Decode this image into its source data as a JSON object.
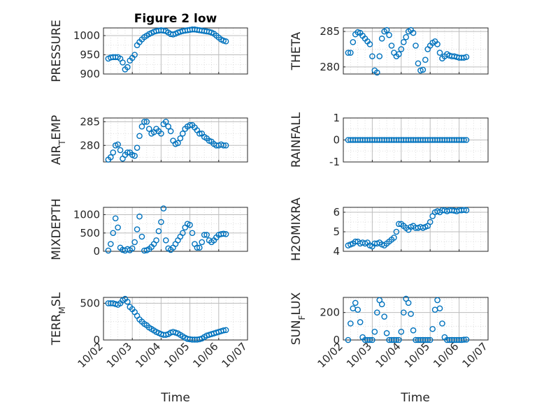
{
  "figure": {
    "title": "Figure 2 low",
    "xlabel": "Time"
  },
  "colors": {
    "marker": "#0072BD",
    "axis": "#262626",
    "grid": "#bdbdbd"
  },
  "chart_data": [
    {
      "type": "scatter",
      "title": "Figure 2 low",
      "ylabel": "PRESSURE",
      "ylabel_sub": "",
      "ylim": [
        900,
        1020
      ],
      "yticks": [
        900,
        950,
        1000
      ],
      "xticks_visible": false,
      "x": [
        "10/02 04:00",
        "10/02 06:00",
        "10/02 08:00",
        "10/02 10:00",
        "10/02 12:00",
        "10/02 14:00",
        "10/02 16:00",
        "10/02 18:00",
        "10/02 20:00",
        "10/02 22:00",
        "10/03 00:00",
        "10/03 02:00",
        "10/03 04:00",
        "10/03 06:00",
        "10/03 08:00",
        "10/03 10:00",
        "10/03 12:00",
        "10/03 14:00",
        "10/03 16:00",
        "10/03 18:00",
        "10/03 20:00",
        "10/03 22:00",
        "10/04 00:00",
        "10/04 02:00",
        "10/04 04:00",
        "10/04 06:00",
        "10/04 08:00",
        "10/04 10:00",
        "10/04 12:00",
        "10/04 14:00",
        "10/04 16:00",
        "10/04 18:00",
        "10/04 20:00",
        "10/04 22:00",
        "10/05 00:00",
        "10/05 02:00",
        "10/05 04:00",
        "10/05 06:00",
        "10/05 08:00",
        "10/05 10:00",
        "10/05 12:00",
        "10/05 14:00",
        "10/05 16:00",
        "10/05 18:00",
        "10/05 20:00",
        "10/05 22:00",
        "10/06 00:00",
        "10/06 02:00",
        "10/06 04:00",
        "10/06 06:00"
      ],
      "y": [
        940,
        943,
        944,
        944,
        944,
        940,
        930,
        912,
        918,
        935,
        942,
        950,
        975,
        983,
        990,
        996,
        1000,
        1004,
        1007,
        1010,
        1012,
        1013,
        1014,
        1013,
        1012,
        1008,
        1004,
        1003,
        1005,
        1008,
        1010,
        1012,
        1013,
        1014,
        1015,
        1016,
        1016,
        1015,
        1014,
        1013,
        1012,
        1011,
        1010,
        1008,
        1005,
        1000,
        995,
        990,
        987,
        985
      ]
    },
    {
      "type": "scatter",
      "title": "",
      "ylabel": "THETA",
      "ylabel_sub": "",
      "ylim": [
        279,
        285.5
      ],
      "yticks": [
        280,
        285
      ],
      "xticks_visible": false,
      "x": [
        "10/02 04:00",
        "10/02 06:00",
        "10/02 08:00",
        "10/02 10:00",
        "10/02 12:00",
        "10/02 14:00",
        "10/02 16:00",
        "10/02 18:00",
        "10/02 20:00",
        "10/02 22:00",
        "10/03 00:00",
        "10/03 02:00",
        "10/03 04:00",
        "10/03 06:00",
        "10/03 08:00",
        "10/03 10:00",
        "10/03 12:00",
        "10/03 14:00",
        "10/03 16:00",
        "10/03 18:00",
        "10/03 20:00",
        "10/03 22:00",
        "10/04 00:00",
        "10/04 02:00",
        "10/04 04:00",
        "10/04 06:00",
        "10/04 08:00",
        "10/04 10:00",
        "10/04 12:00",
        "10/04 14:00",
        "10/04 16:00",
        "10/04 18:00",
        "10/04 20:00",
        "10/04 22:00",
        "10/05 00:00",
        "10/05 02:00",
        "10/05 04:00",
        "10/05 06:00",
        "10/05 08:00",
        "10/05 10:00",
        "10/05 12:00",
        "10/05 14:00",
        "10/05 16:00",
        "10/05 18:00",
        "10/05 20:00",
        "10/05 22:00",
        "10/06 00:00",
        "10/06 02:00",
        "10/06 04:00",
        "10/06 06:00"
      ],
      "y": [
        282,
        282,
        283.5,
        284.6,
        284.9,
        284.8,
        284.4,
        284,
        283.6,
        283.2,
        281.5,
        279.5,
        279.2,
        281.5,
        284,
        285,
        285.2,
        284.5,
        283,
        282,
        281.5,
        281.8,
        282.5,
        283.5,
        284.2,
        285,
        285.2,
        284.8,
        283,
        280.5,
        279.5,
        279.6,
        281,
        282.5,
        283,
        283.4,
        283.6,
        283.2,
        282,
        281.2,
        281.5,
        281.8,
        281.6,
        281.5,
        281.5,
        281.4,
        281.3,
        281.3,
        281.3,
        281.4
      ]
    },
    {
      "type": "scatter",
      "title": "",
      "ylabel": "AIR",
      "ylabel_sub": "T",
      "ylabel_tail": "EMP",
      "ylim": [
        276.5,
        285.8
      ],
      "yticks": [
        280,
        285
      ],
      "xticks_visible": false,
      "x": [
        "10/02 04:00",
        "10/02 06:00",
        "10/02 08:00",
        "10/02 10:00",
        "10/02 12:00",
        "10/02 14:00",
        "10/02 16:00",
        "10/02 18:00",
        "10/02 20:00",
        "10/02 22:00",
        "10/03 00:00",
        "10/03 02:00",
        "10/03 04:00",
        "10/03 06:00",
        "10/03 08:00",
        "10/03 10:00",
        "10/03 12:00",
        "10/03 14:00",
        "10/03 16:00",
        "10/03 18:00",
        "10/03 20:00",
        "10/03 22:00",
        "10/04 00:00",
        "10/04 02:00",
        "10/04 04:00",
        "10/04 06:00",
        "10/04 08:00",
        "10/04 10:00",
        "10/04 12:00",
        "10/04 14:00",
        "10/04 16:00",
        "10/04 18:00",
        "10/04 20:00",
        "10/04 22:00",
        "10/05 00:00",
        "10/05 02:00",
        "10/05 04:00",
        "10/05 06:00",
        "10/05 08:00",
        "10/05 10:00",
        "10/05 12:00",
        "10/05 14:00",
        "10/05 16:00",
        "10/05 18:00",
        "10/05 20:00",
        "10/05 22:00",
        "10/06 00:00",
        "10/06 02:00",
        "10/06 04:00",
        "10/06 06:00"
      ],
      "y": [
        277,
        277.5,
        278.5,
        280,
        280.2,
        279,
        277.2,
        278,
        278.5,
        278.5,
        278,
        277.8,
        279.5,
        282,
        284,
        285,
        285,
        283.5,
        282.5,
        282.8,
        283.5,
        283,
        282.5,
        284.5,
        285,
        284,
        283,
        281,
        280.3,
        280.5,
        281.5,
        282.5,
        283.5,
        284,
        284.3,
        284.3,
        283.8,
        283.2,
        282.5,
        282.5,
        281.8,
        281.5,
        281,
        280.8,
        280.3,
        280,
        280,
        280.2,
        280,
        280
      ]
    },
    {
      "type": "scatter",
      "title": "",
      "ylabel": "RAINFALL",
      "ylabel_sub": "",
      "ylim": [
        -1,
        1
      ],
      "yticks": [
        -1,
        0,
        1
      ],
      "xticks_visible": false,
      "x": [
        "10/02 04:00",
        "10/02 06:00",
        "10/02 08:00",
        "10/02 10:00",
        "10/02 12:00",
        "10/02 14:00",
        "10/02 16:00",
        "10/02 18:00",
        "10/02 20:00",
        "10/02 22:00",
        "10/03 00:00",
        "10/03 02:00",
        "10/03 04:00",
        "10/03 06:00",
        "10/03 08:00",
        "10/03 10:00",
        "10/03 12:00",
        "10/03 14:00",
        "10/03 16:00",
        "10/03 18:00",
        "10/03 20:00",
        "10/03 22:00",
        "10/04 00:00",
        "10/04 02:00",
        "10/04 04:00",
        "10/04 06:00",
        "10/04 08:00",
        "10/04 10:00",
        "10/04 12:00",
        "10/04 14:00",
        "10/04 16:00",
        "10/04 18:00",
        "10/04 20:00",
        "10/04 22:00",
        "10/05 00:00",
        "10/05 02:00",
        "10/05 04:00",
        "10/05 06:00",
        "10/05 08:00",
        "10/05 10:00",
        "10/05 12:00",
        "10/05 14:00",
        "10/05 16:00",
        "10/05 18:00",
        "10/05 20:00",
        "10/05 22:00",
        "10/06 00:00",
        "10/06 02:00",
        "10/06 04:00",
        "10/06 06:00"
      ],
      "y": [
        0,
        0,
        0,
        0,
        0,
        0,
        0,
        0,
        0,
        0,
        0,
        0,
        0,
        0,
        0,
        0,
        0,
        0,
        0,
        0,
        0,
        0,
        0,
        0,
        0,
        0,
        0,
        0,
        0,
        0,
        0,
        0,
        0,
        0,
        0,
        0,
        0,
        0,
        0,
        0,
        0,
        0,
        0,
        0,
        0,
        0,
        0,
        0,
        0,
        0
      ]
    },
    {
      "type": "scatter",
      "title": "",
      "ylabel": "MIXDEPTH",
      "ylabel_sub": "",
      "ylim": [
        0,
        1200
      ],
      "yticks": [
        0,
        500,
        1000
      ],
      "xticks_visible": false,
      "x": [
        "10/02 04:00",
        "10/02 06:00",
        "10/02 08:00",
        "10/02 10:00",
        "10/02 12:00",
        "10/02 14:00",
        "10/02 16:00",
        "10/02 18:00",
        "10/02 20:00",
        "10/02 22:00",
        "10/03 00:00",
        "10/03 02:00",
        "10/03 04:00",
        "10/03 06:00",
        "10/03 08:00",
        "10/03 10:00",
        "10/03 12:00",
        "10/03 14:00",
        "10/03 16:00",
        "10/03 18:00",
        "10/03 20:00",
        "10/03 22:00",
        "10/04 00:00",
        "10/04 02:00",
        "10/04 04:00",
        "10/04 06:00",
        "10/04 08:00",
        "10/04 10:00",
        "10/04 12:00",
        "10/04 14:00",
        "10/04 16:00",
        "10/04 18:00",
        "10/04 20:00",
        "10/04 22:00",
        "10/05 00:00",
        "10/05 02:00",
        "10/05 04:00",
        "10/05 06:00",
        "10/05 08:00",
        "10/05 10:00",
        "10/05 12:00",
        "10/05 14:00",
        "10/05 16:00",
        "10/05 18:00",
        "10/05 20:00",
        "10/05 22:00",
        "10/06 00:00",
        "10/06 02:00",
        "10/06 04:00",
        "10/06 06:00"
      ],
      "y": [
        20,
        200,
        500,
        900,
        650,
        100,
        40,
        20,
        60,
        30,
        80,
        250,
        600,
        950,
        400,
        20,
        30,
        60,
        120,
        200,
        300,
        550,
        800,
        1170,
        300,
        80,
        40,
        100,
        200,
        300,
        400,
        500,
        650,
        750,
        720,
        500,
        200,
        100,
        100,
        250,
        450,
        450,
        300,
        250,
        300,
        380,
        450,
        470,
        480,
        470
      ]
    },
    {
      "type": "scatter",
      "title": "",
      "ylabel": "H2OMIXRA",
      "ylabel_sub": "",
      "ylim": [
        4,
        6.25
      ],
      "yticks": [
        4,
        5,
        6
      ],
      "xticks_visible": false,
      "x": [
        "10/02 04:00",
        "10/02 06:00",
        "10/02 08:00",
        "10/02 10:00",
        "10/02 12:00",
        "10/02 14:00",
        "10/02 16:00",
        "10/02 18:00",
        "10/02 20:00",
        "10/02 22:00",
        "10/03 00:00",
        "10/03 02:00",
        "10/03 04:00",
        "10/03 06:00",
        "10/03 08:00",
        "10/03 10:00",
        "10/03 12:00",
        "10/03 14:00",
        "10/03 16:00",
        "10/03 18:00",
        "10/03 20:00",
        "10/03 22:00",
        "10/04 00:00",
        "10/04 02:00",
        "10/04 04:00",
        "10/04 06:00",
        "10/04 08:00",
        "10/04 10:00",
        "10/04 12:00",
        "10/04 14:00",
        "10/04 16:00",
        "10/04 18:00",
        "10/04 20:00",
        "10/04 22:00",
        "10/05 00:00",
        "10/05 02:00",
        "10/05 04:00",
        "10/05 06:00",
        "10/05 08:00",
        "10/05 10:00",
        "10/05 12:00",
        "10/05 14:00",
        "10/05 16:00",
        "10/05 18:00",
        "10/05 20:00",
        "10/05 22:00",
        "10/06 00:00",
        "10/06 02:00",
        "10/06 04:00",
        "10/06 06:00"
      ],
      "y": [
        4.3,
        4.35,
        4.4,
        4.5,
        4.5,
        4.4,
        4.45,
        4.4,
        4.45,
        4.3,
        4.25,
        4.4,
        4.4,
        4.45,
        4.35,
        4.3,
        4.4,
        4.5,
        4.6,
        4.7,
        5,
        5.4,
        5.4,
        5.3,
        5.2,
        5.1,
        5.25,
        5.3,
        5.2,
        5.2,
        5.25,
        5.2,
        5.25,
        5.3,
        5.5,
        5.8,
        6,
        6.05,
        6,
        6.1,
        6.1,
        6.05,
        6.1,
        6.1,
        6.08,
        6.05,
        6.1,
        6.1,
        6.12,
        6.1
      ]
    },
    {
      "type": "scatter",
      "title": "",
      "ylabel": "TERR",
      "ylabel_sub": "M",
      "ylabel_tail": "SL",
      "ylim": [
        0,
        580
      ],
      "yticks": [
        0,
        500
      ],
      "xticks_visible": true,
      "xticklabels": [
        "10/02",
        "10/03",
        "10/04",
        "10/05",
        "10/06",
        "10/07"
      ],
      "x": [
        "10/02 04:00",
        "10/02 06:00",
        "10/02 08:00",
        "10/02 10:00",
        "10/02 12:00",
        "10/02 14:00",
        "10/02 16:00",
        "10/02 18:00",
        "10/02 20:00",
        "10/02 22:00",
        "10/03 00:00",
        "10/03 02:00",
        "10/03 04:00",
        "10/03 06:00",
        "10/03 08:00",
        "10/03 10:00",
        "10/03 12:00",
        "10/03 14:00",
        "10/03 16:00",
        "10/03 18:00",
        "10/03 20:00",
        "10/03 22:00",
        "10/04 00:00",
        "10/04 02:00",
        "10/04 04:00",
        "10/04 06:00",
        "10/04 08:00",
        "10/04 10:00",
        "10/04 12:00",
        "10/04 14:00",
        "10/04 16:00",
        "10/04 18:00",
        "10/04 20:00",
        "10/04 22:00",
        "10/05 00:00",
        "10/05 02:00",
        "10/05 04:00",
        "10/05 06:00",
        "10/05 08:00",
        "10/05 10:00",
        "10/05 12:00",
        "10/05 14:00",
        "10/05 16:00",
        "10/05 18:00",
        "10/05 20:00",
        "10/05 22:00",
        "10/06 00:00",
        "10/06 02:00",
        "10/06 04:00",
        "10/06 06:00"
      ],
      "y": [
        500,
        500,
        500,
        490,
        480,
        500,
        540,
        560,
        520,
        450,
        420,
        380,
        330,
        280,
        250,
        220,
        200,
        170,
        150,
        130,
        110,
        95,
        80,
        70,
        70,
        80,
        100,
        110,
        100,
        90,
        70,
        50,
        30,
        15,
        10,
        5,
        5,
        5,
        10,
        20,
        40,
        60,
        70,
        80,
        90,
        100,
        110,
        120,
        130,
        135
      ]
    },
    {
      "type": "scatter",
      "title": "",
      "ylabel": "SUN",
      "ylabel_sub": "F",
      "ylabel_tail": "LUX",
      "ylim": [
        0,
        310
      ],
      "yticks": [
        0,
        200
      ],
      "xticks_visible": true,
      "xticklabels": [
        "10/02",
        "10/03",
        "10/04",
        "10/05",
        "10/06",
        "10/07"
      ],
      "x": [
        "10/02 04:00",
        "10/02 06:00",
        "10/02 08:00",
        "10/02 10:00",
        "10/02 12:00",
        "10/02 14:00",
        "10/02 16:00",
        "10/02 18:00",
        "10/02 20:00",
        "10/02 22:00",
        "10/03 00:00",
        "10/03 02:00",
        "10/03 04:00",
        "10/03 06:00",
        "10/03 08:00",
        "10/03 10:00",
        "10/03 12:00",
        "10/03 14:00",
        "10/03 16:00",
        "10/03 18:00",
        "10/03 20:00",
        "10/03 22:00",
        "10/04 00:00",
        "10/04 02:00",
        "10/04 04:00",
        "10/04 06:00",
        "10/04 08:00",
        "10/04 10:00",
        "10/04 12:00",
        "10/04 14:00",
        "10/04 16:00",
        "10/04 18:00",
        "10/04 20:00",
        "10/04 22:00",
        "10/05 00:00",
        "10/05 02:00",
        "10/05 04:00",
        "10/05 06:00",
        "10/05 08:00",
        "10/05 10:00",
        "10/05 12:00",
        "10/05 14:00",
        "10/05 16:00",
        "10/05 18:00",
        "10/05 20:00",
        "10/05 22:00",
        "10/06 00:00",
        "10/06 02:00",
        "10/06 04:00",
        "10/06 06:00"
      ],
      "y": [
        0,
        120,
        230,
        270,
        220,
        130,
        20,
        0,
        0,
        0,
        0,
        60,
        200,
        290,
        260,
        170,
        50,
        0,
        0,
        0,
        0,
        0,
        60,
        200,
        300,
        270,
        190,
        70,
        0,
        0,
        0,
        0,
        0,
        0,
        0,
        80,
        220,
        290,
        230,
        120,
        20,
        0,
        0,
        0,
        0,
        0,
        0,
        0,
        2,
        3
      ]
    }
  ]
}
